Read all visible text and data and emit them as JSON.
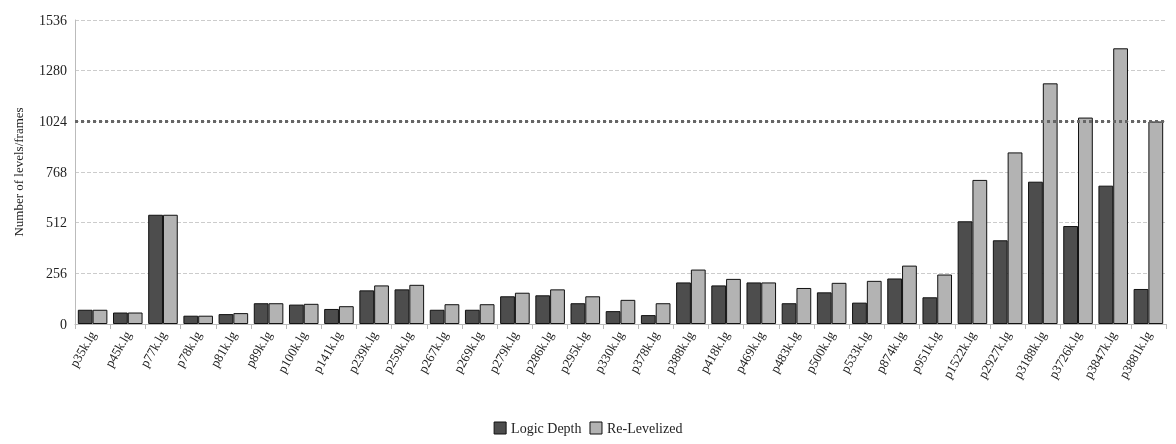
{
  "chart_data": {
    "type": "bar",
    "ylabel": "Number of levels/frames",
    "categories": [
      "p35k.lg",
      "p45k.lg",
      "p77k.lg",
      "p78k.lg",
      "p81k.lg",
      "p89k.lg",
      "p100k.lg",
      "p141k.lg",
      "p239k.lg",
      "p259k.lg",
      "p267k.lg",
      "p269k.lg",
      "p279k.lg",
      "p286k.lg",
      "p295k.lg",
      "p330k.lg",
      "p378k.lg",
      "p388k.lg",
      "p418k.lg",
      "p469k.lg",
      "p483k.lg",
      "p500k.lg",
      "p533k.lg",
      "p874k.lg",
      "p951k.lg",
      "p1522k.lg",
      "p2927k.lg",
      "p3188k.lg",
      "p3726k.lg",
      "p3847k.lg",
      "p3881k.lg"
    ],
    "series": [
      {
        "name": "Logic Depth",
        "color": "#4d4d4d",
        "values": [
          72,
          58,
          552,
          42,
          50,
          105,
          98,
          76,
          170,
          175,
          72,
          72,
          140,
          145,
          105,
          65,
          45,
          210,
          195,
          210,
          105,
          160,
          108,
          230,
          135,
          519,
          423,
          719,
          495,
          699,
          177
        ]
      },
      {
        "name": "Re-Levelized",
        "color": "#b3b3b3",
        "values": [
          72,
          58,
          552,
          42,
          55,
          105,
          102,
          90,
          195,
          198,
          100,
          100,
          158,
          175,
          140,
          122,
          105,
          275,
          228,
          210,
          182,
          208,
          218,
          295,
          250,
          728,
          867,
          1216,
          1043,
          1393,
          1023
        ]
      }
    ],
    "ylim": [
      0,
      1536
    ],
    "yticks": [
      0,
      256,
      512,
      768,
      1024,
      1280,
      1536
    ],
    "grid": "y",
    "legend": "bottom",
    "ref_lines": [
      {
        "axis": "y",
        "value": 1024,
        "color": "#666666",
        "line_style": "dotted"
      }
    ]
  }
}
